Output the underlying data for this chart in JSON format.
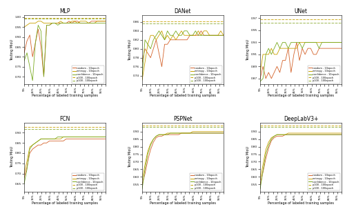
{
  "titles": [
    "MLP",
    "DANet",
    "UNet",
    "FCN",
    "PSPNet",
    "DeepLabV3+"
  ],
  "legend_labels": [
    "random - 10epoch",
    "entropy - 10epoch",
    "confidence - 10epoch",
    "p100 - 100epoch",
    "p100 - 100epoch"
  ],
  "curve_colors": [
    "#d4622a",
    "#c8a000",
    "#7aaa20"
  ],
  "hline_colors": [
    "#c8a000",
    "#8aaa30"
  ],
  "xlabel": "Percentage of labeled training samples",
  "ylabel": "Testing MIoU",
  "panels": {
    "MLP": {
      "ylim": [
        0.66,
        1.01
      ],
      "yticks": [
        0.7,
        0.75,
        0.8,
        0.85,
        0.9,
        0.95,
        1.0
      ],
      "hlines": [
        0.998,
        0.993
      ],
      "curves": {
        "random": [
          0.82,
          0.88,
          0.91,
          0.8,
          0.87,
          0.94,
          0.85,
          0.7,
          0.96,
          0.96,
          0.97,
          0.97,
          0.97,
          0.97,
          0.97,
          0.97,
          0.98,
          0.97,
          0.98,
          0.98,
          0.97,
          0.97,
          0.97,
          0.97,
          0.98,
          0.98,
          0.98,
          0.98,
          0.98,
          0.98
        ],
        "entropy": [
          0.95,
          0.96,
          0.97,
          0.97,
          0.97,
          0.98,
          0.98,
          0.97,
          0.97,
          0.97,
          0.97,
          0.97,
          0.97,
          0.98,
          0.97,
          0.97,
          0.97,
          0.98,
          0.98,
          0.97,
          0.98,
          0.98,
          0.98,
          0.97,
          0.97,
          0.97,
          0.98,
          0.98,
          0.98,
          0.98
        ],
        "confidence": [
          0.78,
          0.82,
          0.75,
          0.68,
          0.87,
          0.96,
          0.93,
          0.7,
          0.96,
          0.96,
          0.97,
          0.97,
          0.96,
          0.97,
          0.97,
          0.97,
          0.97,
          0.97,
          0.97,
          0.97,
          0.97,
          0.97,
          0.97,
          0.97,
          0.97,
          0.97,
          0.97,
          0.97,
          0.97,
          0.97
        ]
      }
    },
    "DANet": {
      "ylim": [
        0.72,
        0.875
      ],
      "yticks": [
        0.74,
        0.76,
        0.78,
        0.8,
        0.82,
        0.84,
        0.86
      ],
      "hlines": [
        0.862,
        0.857
      ],
      "curves": {
        "random": [
          0.77,
          0.8,
          0.79,
          0.78,
          0.8,
          0.82,
          0.79,
          0.76,
          0.81,
          0.81,
          0.82,
          0.82,
          0.82,
          0.82,
          0.82,
          0.82,
          0.82,
          0.83,
          0.83,
          0.83,
          0.83,
          0.84,
          0.83,
          0.83,
          0.83,
          0.83,
          0.83,
          0.83,
          0.83,
          0.83
        ],
        "entropy": [
          0.73,
          0.77,
          0.81,
          0.83,
          0.83,
          0.82,
          0.83,
          0.84,
          0.82,
          0.83,
          0.82,
          0.83,
          0.82,
          0.83,
          0.84,
          0.83,
          0.83,
          0.83,
          0.83,
          0.83,
          0.84,
          0.83,
          0.84,
          0.84,
          0.83,
          0.83,
          0.83,
          0.83,
          0.84,
          0.83
        ],
        "confidence": [
          0.74,
          0.82,
          0.81,
          0.8,
          0.82,
          0.83,
          0.84,
          0.83,
          0.82,
          0.84,
          0.83,
          0.83,
          0.84,
          0.83,
          0.83,
          0.84,
          0.84,
          0.83,
          0.83,
          0.84,
          0.83,
          0.83,
          0.83,
          0.83,
          0.83,
          0.83,
          0.83,
          0.83,
          0.83,
          0.83
        ]
      }
    },
    "UNet": {
      "ylim": [
        0.86,
        0.975
      ],
      "yticks": [
        0.87,
        0.89,
        0.91,
        0.93,
        0.95,
        0.97
      ],
      "hlines": [
        0.968,
        0.962
      ],
      "curves": {
        "random": [
          0.87,
          0.89,
          0.87,
          0.88,
          0.87,
          0.88,
          0.89,
          0.88,
          0.9,
          0.9,
          0.92,
          0.88,
          0.91,
          0.93,
          0.9,
          0.92,
          0.91,
          0.92,
          0.92,
          0.91,
          0.91,
          0.92,
          0.92,
          0.92,
          0.92,
          0.92,
          0.92,
          0.92,
          0.92,
          0.92
        ],
        "entropy": [
          0.88,
          0.91,
          0.91,
          0.91,
          0.92,
          0.91,
          0.91,
          0.92,
          0.92,
          0.92,
          0.92,
          0.92,
          0.92,
          0.92,
          0.93,
          0.93,
          0.93,
          0.93,
          0.93,
          0.93,
          0.93,
          0.93,
          0.93,
          0.93,
          0.93,
          0.93,
          0.93,
          0.93,
          0.93,
          0.93
        ],
        "confidence": [
          0.865,
          0.87,
          0.91,
          0.92,
          0.91,
          0.92,
          0.93,
          0.92,
          0.93,
          0.93,
          0.92,
          0.93,
          0.93,
          0.93,
          0.93,
          0.92,
          0.93,
          0.93,
          0.93,
          0.93,
          0.93,
          0.92,
          0.93,
          0.93,
          0.93,
          0.93,
          0.93,
          0.93,
          0.93,
          0.93
        ]
      }
    },
    "FCN": {
      "ylim": [
        0.61,
        0.95
      ],
      "yticks": [
        0.65,
        0.7,
        0.75,
        0.8,
        0.85,
        0.9
      ],
      "hlines": [
        0.93,
        0.92
      ],
      "curves": {
        "random": [
          0.68,
          0.73,
          0.8,
          0.82,
          0.83,
          0.84,
          0.84,
          0.85,
          0.85,
          0.86,
          0.86,
          0.86,
          0.86,
          0.86,
          0.86,
          0.87,
          0.87,
          0.87,
          0.87,
          0.87,
          0.87,
          0.87,
          0.87,
          0.87,
          0.87,
          0.87,
          0.87,
          0.87,
          0.87,
          0.87
        ],
        "entropy": [
          0.7,
          0.76,
          0.83,
          0.84,
          0.85,
          0.86,
          0.87,
          0.87,
          0.87,
          0.87,
          0.87,
          0.87,
          0.87,
          0.87,
          0.88,
          0.88,
          0.88,
          0.88,
          0.88,
          0.88,
          0.88,
          0.88,
          0.88,
          0.88,
          0.88,
          0.88,
          0.88,
          0.88,
          0.88,
          0.88
        ],
        "confidence": [
          0.65,
          0.72,
          0.82,
          0.84,
          0.85,
          0.86,
          0.87,
          0.87,
          0.87,
          0.87,
          0.87,
          0.87,
          0.88,
          0.88,
          0.88,
          0.88,
          0.88,
          0.88,
          0.88,
          0.88,
          0.88,
          0.88,
          0.88,
          0.88,
          0.88,
          0.88,
          0.88,
          0.88,
          0.88,
          0.88
        ]
      }
    },
    "PSPNet": {
      "ylim": [
        0.5,
        0.96
      ],
      "yticks": [
        0.55,
        0.6,
        0.65,
        0.7,
        0.75,
        0.8,
        0.85,
        0.9
      ],
      "hlines": [
        0.942,
        0.933
      ],
      "curves": {
        "random": [
          0.55,
          0.62,
          0.71,
          0.78,
          0.83,
          0.86,
          0.87,
          0.87,
          0.88,
          0.88,
          0.88,
          0.88,
          0.88,
          0.88,
          0.89,
          0.89,
          0.89,
          0.89,
          0.89,
          0.89,
          0.89,
          0.89,
          0.89,
          0.89,
          0.89,
          0.89,
          0.89,
          0.89,
          0.89,
          0.89
        ],
        "entropy": [
          0.58,
          0.68,
          0.77,
          0.82,
          0.85,
          0.87,
          0.88,
          0.88,
          0.88,
          0.89,
          0.89,
          0.89,
          0.89,
          0.89,
          0.89,
          0.89,
          0.89,
          0.89,
          0.9,
          0.9,
          0.9,
          0.9,
          0.9,
          0.9,
          0.9,
          0.9,
          0.9,
          0.9,
          0.9,
          0.9
        ],
        "confidence": [
          0.52,
          0.65,
          0.75,
          0.81,
          0.85,
          0.87,
          0.88,
          0.88,
          0.88,
          0.88,
          0.89,
          0.89,
          0.89,
          0.89,
          0.89,
          0.89,
          0.89,
          0.89,
          0.89,
          0.89,
          0.89,
          0.89,
          0.89,
          0.89,
          0.89,
          0.89,
          0.89,
          0.89,
          0.89,
          0.89
        ]
      }
    },
    "DeepLabV3+": {
      "ylim": [
        0.5,
        0.96
      ],
      "yticks": [
        0.55,
        0.6,
        0.65,
        0.7,
        0.75,
        0.8,
        0.85,
        0.9
      ],
      "hlines": [
        0.942,
        0.933
      ],
      "curves": {
        "random": [
          0.55,
          0.63,
          0.72,
          0.79,
          0.84,
          0.86,
          0.87,
          0.87,
          0.87,
          0.88,
          0.88,
          0.88,
          0.88,
          0.88,
          0.88,
          0.88,
          0.88,
          0.88,
          0.88,
          0.88,
          0.88,
          0.88,
          0.88,
          0.88,
          0.88,
          0.88,
          0.88,
          0.88,
          0.88,
          0.88
        ],
        "entropy": [
          0.58,
          0.68,
          0.78,
          0.83,
          0.86,
          0.87,
          0.88,
          0.88,
          0.88,
          0.88,
          0.89,
          0.89,
          0.89,
          0.89,
          0.89,
          0.89,
          0.89,
          0.89,
          0.89,
          0.89,
          0.89,
          0.89,
          0.89,
          0.89,
          0.89,
          0.89,
          0.89,
          0.89,
          0.89,
          0.89
        ],
        "confidence": [
          0.52,
          0.64,
          0.75,
          0.81,
          0.85,
          0.87,
          0.88,
          0.88,
          0.88,
          0.88,
          0.88,
          0.88,
          0.88,
          0.88,
          0.88,
          0.88,
          0.88,
          0.88,
          0.88,
          0.88,
          0.88,
          0.88,
          0.88,
          0.88,
          0.88,
          0.88,
          0.88,
          0.88,
          0.88,
          0.88
        ]
      }
    }
  }
}
